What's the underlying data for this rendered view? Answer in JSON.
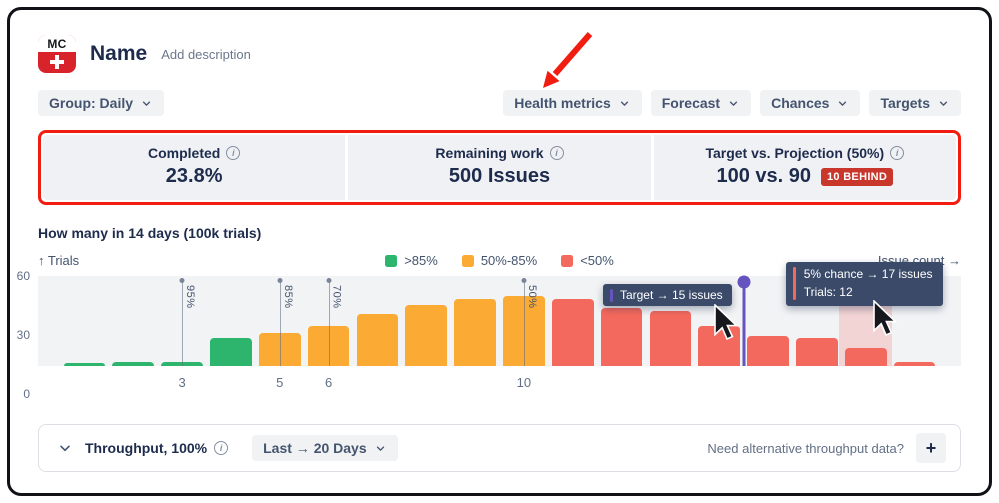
{
  "header": {
    "logo_text": "MC",
    "title": "Name",
    "add_description": "Add description"
  },
  "toolbar": {
    "group_menu": "Group: Daily",
    "menus": [
      "Health metrics",
      "Forecast",
      "Chances",
      "Targets"
    ]
  },
  "metrics": [
    {
      "label": "Completed",
      "value": "23.8%"
    },
    {
      "label": "Remaining work",
      "value": "500 Issues"
    },
    {
      "label": "Target vs. Projection (50%)",
      "value": "100 vs. 90",
      "badge": "10 BEHIND",
      "badge_color": "#c9372c"
    }
  ],
  "chart": {
    "y_axis_title": "↑ Trials",
    "x_axis_title": "Issue count →",
    "y_ticks": [
      "60",
      "30",
      "0"
    ]
  },
  "chart_data": {
    "type": "bar",
    "title": "How many in 14 days (100k trials)",
    "xlabel": "Issue count",
    "ylabel": "Trials",
    "ylim": [
      0,
      60
    ],
    "x": [
      1,
      2,
      3,
      4,
      5,
      6,
      7,
      8,
      9,
      10,
      11,
      12,
      13,
      14,
      15,
      16,
      17,
      18
    ],
    "values": [
      2,
      3,
      3,
      19,
      22,
      27,
      35,
      41,
      45,
      47,
      45,
      39,
      37,
      27,
      20,
      19,
      12,
      3
    ],
    "groups": [
      "green",
      "green",
      "green",
      "green",
      "yellow",
      "yellow",
      "yellow",
      "yellow",
      "yellow",
      "yellow",
      "red",
      "red",
      "red",
      "red",
      "red",
      "red",
      "red",
      "red"
    ],
    "colors": {
      "green": "#2db56e",
      "yellow": "#fbab33",
      "red": "#f4695e"
    },
    "legend": [
      {
        "label": ">85%",
        "color": "#2db56e"
      },
      {
        "label": "50%-85%",
        "color": "#fbab33"
      },
      {
        "label": "<50%",
        "color": "#f4695e"
      }
    ],
    "percentile_markers": [
      {
        "bar": 3,
        "label": "95%"
      },
      {
        "bar": 5,
        "label": "85%"
      },
      {
        "bar": 6,
        "label": "70%"
      },
      {
        "bar": 10,
        "label": "50%"
      }
    ],
    "x_ticks": [
      {
        "bar": 3,
        "label": "3"
      },
      {
        "bar": 5,
        "label": "5"
      },
      {
        "bar": 6,
        "label": "6"
      },
      {
        "bar": 10,
        "label": "10"
      }
    ],
    "target": {
      "after_bar": 14,
      "issues": 15,
      "color": "#6554c0",
      "tooltip": "Target → 15 issues"
    },
    "hover": {
      "bar": 17,
      "tooltip_line1": "5% chance → 17 issues",
      "tooltip_line2": "Trials: 12",
      "accent_color": "#f4695e"
    }
  },
  "throughput": {
    "expander_label": "Throughput, 100%",
    "range_menu": "Last → 20 Days",
    "hint": "Need alternative throughput data?",
    "add_button": "+"
  },
  "icons": {
    "info": "i"
  },
  "annotations": {
    "highlight_color": "#f21d11"
  }
}
